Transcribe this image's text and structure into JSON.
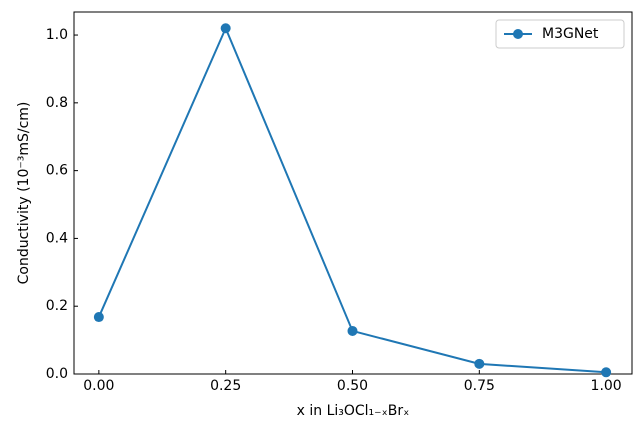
{
  "chart_data": {
    "type": "line",
    "x_label": "x in Li₃OCl₁₋ₓBrₓ",
    "y_label": "Conductivity (10⁻³mS/cm)",
    "x": [
      0.0,
      0.25,
      0.5,
      0.75,
      1.0
    ],
    "series": [
      {
        "name": "M3GNet",
        "color": "#1f77b4",
        "values": [
          0.168,
          1.02,
          0.127,
          0.03,
          0.005
        ]
      }
    ],
    "xlim": [
      -0.049,
      1.051
    ],
    "ylim": [
      0,
      1.068
    ],
    "xticks": [
      {
        "value": 0,
        "label": "0.00"
      },
      {
        "value": 0.25,
        "label": "0.25"
      },
      {
        "value": 0.5,
        "label": "0.50"
      },
      {
        "value": 0.75,
        "label": "0.75"
      },
      {
        "value": 1,
        "label": "1.00"
      }
    ],
    "yticks": [
      {
        "value": 0,
        "label": "0.0"
      },
      {
        "value": 0.2,
        "label": "0.2"
      },
      {
        "value": 0.4,
        "label": "0.4"
      },
      {
        "value": 0.6,
        "label": "0.6"
      },
      {
        "value": 0.8,
        "label": "0.8"
      },
      {
        "value": 1.0,
        "label": "1.0"
      }
    ],
    "legend": "upper right"
  }
}
